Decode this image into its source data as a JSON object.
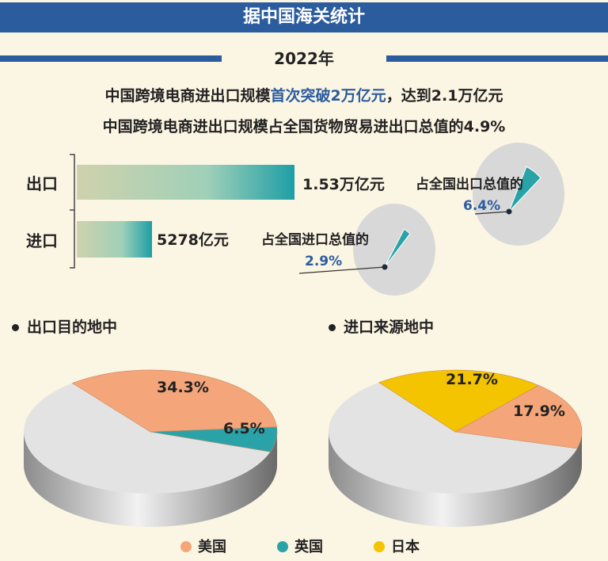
{
  "header": {
    "title": "据中国海关统计"
  },
  "year": "2022年",
  "summary": {
    "line1_pre": "中国跨境电商进出口规模",
    "line1_highlight": "首次突破2万亿元",
    "line1_post": "，达到2.1万亿元",
    "line2": "中国跨境电商进出口规模占全国货物贸易进出口总值的4.9%"
  },
  "colors": {
    "header": "#2b5c9e",
    "usa": "#f4a57a",
    "uk": "#2aa3a8",
    "japan": "#f5c400",
    "other": "#e3e3e3"
  },
  "chart_data": [
    {
      "type": "bar",
      "categories": [
        "出口",
        "进口"
      ],
      "values": [
        15300,
        5278
      ],
      "value_labels": [
        "1.53万亿元",
        "5278亿元"
      ]
    },
    {
      "type": "pie",
      "label": "占全国出口总值的",
      "slices": [
        {
          "value": 6.4,
          "label": "6.4%"
        }
      ]
    },
    {
      "type": "pie",
      "label": "占全国进口总值的",
      "slices": [
        {
          "value": 2.9,
          "label": "2.9%"
        }
      ]
    },
    {
      "type": "pie",
      "title": "出口目的地中",
      "slices": [
        {
          "name": "美国",
          "value": 34.3,
          "label": "34.3%"
        },
        {
          "name": "英国",
          "value": 6.5,
          "label": "6.5%"
        }
      ]
    },
    {
      "type": "pie",
      "title": "进口来源地中",
      "slices": [
        {
          "name": "日本",
          "value": 21.7,
          "label": "21.7%"
        },
        {
          "name": "美国",
          "value": 17.9,
          "label": "17.9%"
        }
      ]
    }
  ],
  "legend": [
    {
      "name": "美国",
      "color": "#f4a57a"
    },
    {
      "name": "英国",
      "color": "#2aa3a8"
    },
    {
      "name": "日本",
      "color": "#f5c400"
    }
  ]
}
